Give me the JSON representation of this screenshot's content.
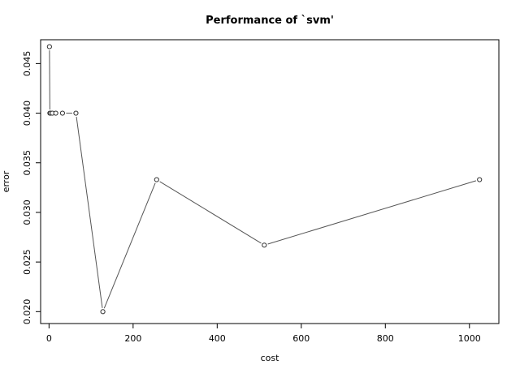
{
  "chart_data": {
    "type": "line",
    "title": "Performance of `svm'",
    "xlabel": "cost",
    "ylabel": "error",
    "xlim": [
      -20,
      1070
    ],
    "ylim": [
      0.0188,
      0.0474
    ],
    "xticks": [
      0,
      200,
      400,
      600,
      800,
      1000
    ],
    "yticks": [
      0.02,
      0.025,
      0.03,
      0.035,
      0.04,
      0.045
    ],
    "xtick_labels": [
      "0",
      "200",
      "400",
      "600",
      "800",
      "1000"
    ],
    "ytick_labels": [
      "0.020",
      "0.025",
      "0.030",
      "0.035",
      "0.040",
      "0.045"
    ],
    "grid": false,
    "series": [
      {
        "x": [
          1,
          2,
          4,
          8,
          16,
          32,
          64,
          128,
          256,
          512,
          1024
        ],
        "y": [
          0.0467,
          0.04,
          0.04,
          0.04,
          0.04,
          0.04,
          0.04,
          0.02,
          0.0333,
          0.0267,
          0.0333
        ],
        "color": "#555555",
        "marker": "open-circle"
      }
    ]
  }
}
